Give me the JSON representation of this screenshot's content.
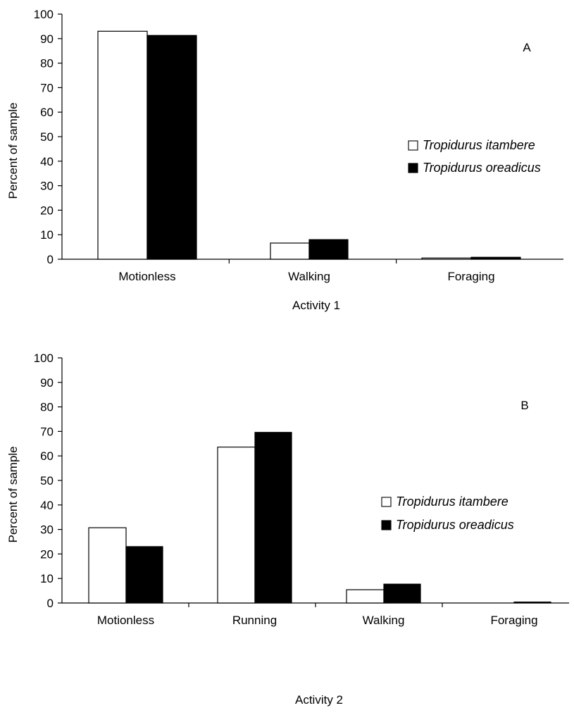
{
  "chart_data": [
    {
      "type": "bar",
      "panel_label": "A",
      "xlabel": "Activity 1",
      "ylabel": "Percent of sample",
      "ylim": [
        0,
        100
      ],
      "yticks": [
        0,
        10,
        20,
        30,
        40,
        50,
        60,
        70,
        80,
        90,
        100
      ],
      "categories": [
        "Motionless",
        "Walking",
        "Foraging"
      ],
      "series": [
        {
          "name": "Tropidurus itambere",
          "color": "#ffffff",
          "values": [
            93,
            6.6,
            0.5
          ]
        },
        {
          "name": "Tropidurus oreadicus",
          "color": "#000000",
          "values": [
            91.3,
            8,
            0.8
          ]
        }
      ],
      "legend_position": "right",
      "grid": false
    },
    {
      "type": "bar",
      "panel_label": "B",
      "xlabel": "Activity 2",
      "ylabel": "Percent of sample",
      "ylim": [
        0,
        100
      ],
      "yticks": [
        0,
        10,
        20,
        30,
        40,
        50,
        60,
        70,
        80,
        90,
        100
      ],
      "categories": [
        "Motionless",
        "Running",
        "Walking",
        "Foraging"
      ],
      "series": [
        {
          "name": "Tropidurus itambere",
          "color": "#ffffff",
          "values": [
            30.7,
            63.6,
            5.4,
            0
          ]
        },
        {
          "name": "Tropidurus oreadicus",
          "color": "#000000",
          "values": [
            23,
            69.6,
            7.7,
            0.4
          ]
        }
      ],
      "legend_position": "right",
      "grid": false
    }
  ]
}
